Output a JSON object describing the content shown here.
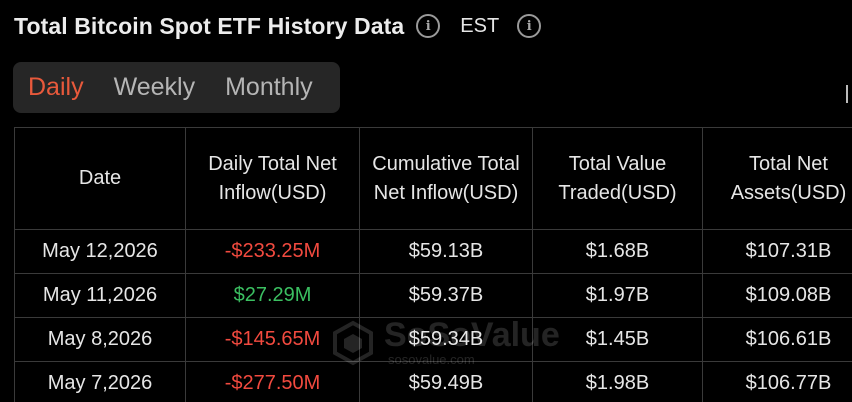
{
  "header": {
    "title": "Total Bitcoin Spot ETF History Data",
    "timezone": "EST",
    "info_icon": "i"
  },
  "tabs": [
    {
      "label": "Daily",
      "active": true
    },
    {
      "label": "Weekly",
      "active": false
    },
    {
      "label": "Monthly",
      "active": false
    }
  ],
  "table": {
    "headers": [
      "Date",
      "Daily Total Net Inflow(USD)",
      "Cumulative Total Net Inflow(USD)",
      "Total Value Traded(USD)",
      "Total Net Assets(USD)"
    ],
    "rows": [
      {
        "date": "May 12,2026",
        "daily": "-$233.25M",
        "cumulative": "$59.13B",
        "traded": "$1.68B",
        "assets": "$107.31B"
      },
      {
        "date": "May 11,2026",
        "daily": "$27.29M",
        "cumulative": "$59.37B",
        "traded": "$1.97B",
        "assets": "$109.08B"
      },
      {
        "date": "May 8,2026",
        "daily": "-$145.65M",
        "cumulative": "$59.34B",
        "traded": "$1.45B",
        "assets": "$106.61B"
      },
      {
        "date": "May 7,2026",
        "daily": "-$277.50M",
        "cumulative": "$59.49B",
        "traded": "$1.98B",
        "assets": "$106.77B"
      }
    ]
  },
  "watermark": {
    "name": "SoSoValue",
    "url": "sosovalue.com"
  },
  "colors": {
    "accent": "#e8593b",
    "negative": "#f24a3f",
    "positive": "#3bbf61"
  }
}
